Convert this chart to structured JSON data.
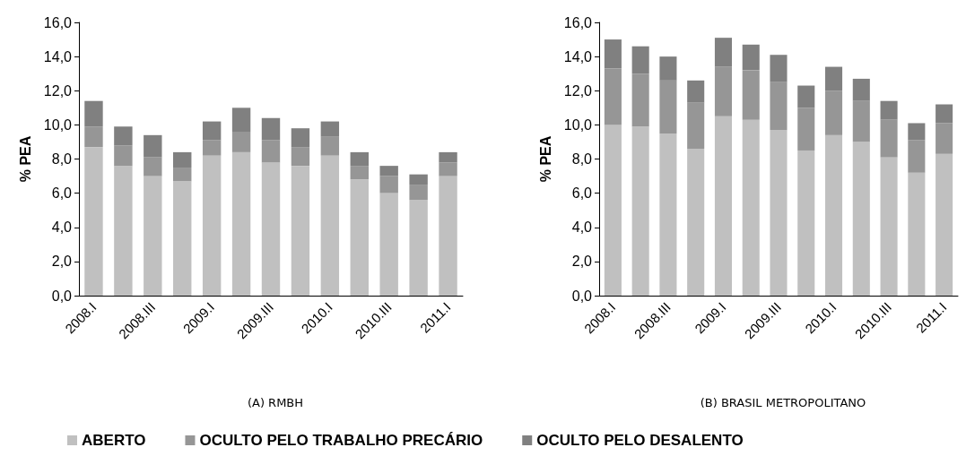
{
  "chart_data": [
    {
      "type": "bar",
      "title": "(A) RMBH",
      "ylabel": "% PEA",
      "stacked": true,
      "legend": "bottom",
      "categories": [
        "2008.I",
        null,
        "2008.III",
        null,
        "2009.I",
        null,
        "2009.III",
        null,
        "2010.I",
        null,
        "2010.III",
        null,
        "2011.I"
      ],
      "series": [
        {
          "name": "ABERTO",
          "color": "#c0c0c0",
          "values": [
            8.7,
            7.6,
            7.0,
            6.7,
            8.2,
            8.4,
            7.8,
            7.6,
            8.2,
            6.8,
            6.0,
            5.6,
            7.0
          ]
        },
        {
          "name": "OCULTO PELO TRABALHO PRECÁRIO",
          "color": "#969696",
          "values": [
            1.2,
            1.2,
            1.1,
            0.8,
            0.9,
            1.2,
            1.3,
            1.1,
            1.1,
            0.8,
            1.0,
            0.9,
            0.8
          ]
        },
        {
          "name": "OCULTO PELO DESALENTO",
          "color": "#808080",
          "values": [
            1.5,
            1.1,
            1.3,
            0.9,
            1.1,
            1.4,
            1.3,
            1.1,
            0.9,
            0.8,
            0.6,
            0.6,
            0.6
          ]
        }
      ],
      "ylim": [
        0,
        16
      ],
      "yticks": [
        {
          "value": 0,
          "label": "0,0"
        },
        {
          "value": 2,
          "label": "2,0"
        },
        {
          "value": 4,
          "label": "4,0"
        },
        {
          "value": 6,
          "label": "6,0"
        },
        {
          "value": 8,
          "label": "8,0"
        },
        {
          "value": 10,
          "label": "10,0"
        },
        {
          "value": 12,
          "label": "12,0"
        },
        {
          "value": 14,
          "label": "14,0"
        },
        {
          "value": 16,
          "label": "16,0"
        }
      ],
      "grid": false
    },
    {
      "type": "bar",
      "title": "(B) BRASIL METROPOLITANO",
      "ylabel": "% PEA",
      "stacked": true,
      "categories": [
        "2008.I",
        null,
        "2008.III",
        null,
        "2009.I",
        null,
        "2009.III",
        null,
        "2010.I",
        null,
        "2010.III",
        null,
        "2011.I"
      ],
      "series": [
        {
          "color": "#c0c0c0",
          "values": [
            10.0,
            9.9,
            9.5,
            8.6,
            10.5,
            10.3,
            9.7,
            8.5,
            9.4,
            9.0,
            8.1,
            7.2,
            8.3
          ]
        },
        {
          "color": "#969696",
          "values": [
            3.3,
            3.1,
            3.1,
            2.7,
            2.9,
            2.9,
            2.8,
            2.5,
            2.6,
            2.4,
            2.2,
            1.9,
            1.8
          ]
        },
        {
          "color": "#808080",
          "values": [
            1.7,
            1.6,
            1.4,
            1.3,
            1.7,
            1.5,
            1.6,
            1.3,
            1.4,
            1.3,
            1.1,
            1.0,
            1.1
          ]
        }
      ],
      "ylim": [
        0,
        16
      ],
      "yticks": [
        {
          "value": 0,
          "label": "0,0"
        },
        {
          "value": 2,
          "label": "2,0"
        },
        {
          "value": 4,
          "label": "4,0"
        },
        {
          "value": 6,
          "label": "6,0"
        },
        {
          "value": 8,
          "label": "8,0"
        },
        {
          "value": 10,
          "label": "10,0"
        },
        {
          "value": 12,
          "label": "12,0"
        },
        {
          "value": 14,
          "label": "14,0"
        },
        {
          "value": 16,
          "label": "16,0"
        }
      ],
      "grid": false
    }
  ]
}
